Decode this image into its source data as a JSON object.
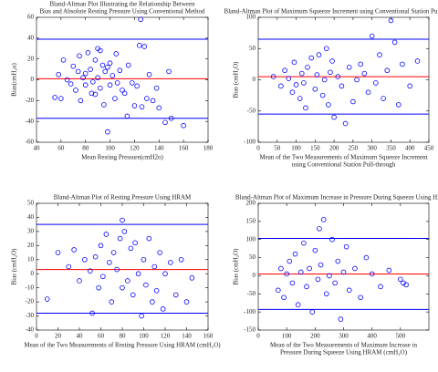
{
  "chart_data": [
    {
      "type": "scatter",
      "title": [
        "Bland-Altman Plot Illustrating the Relationship Between",
        "Bias and Absolute Resting Pressure Using Conventional Method"
      ],
      "xlabel": [
        "Mean Resting Pressure(cmH2o)"
      ],
      "ylabel": "Bias(cmH₂o)",
      "xlim": [
        40,
        180
      ],
      "xticks": [
        40,
        60,
        80,
        100,
        120,
        140,
        160,
        180
      ],
      "ylim": [
        -60,
        60
      ],
      "yticks": [
        -60,
        -40,
        -20,
        0,
        20,
        40,
        60
      ],
      "color": "#0000ff",
      "hlines": [
        39,
        1,
        -37
      ],
      "hline_colors": [
        "#0000ff",
        "#ff0000",
        "#0000ff"
      ],
      "x": [
        55,
        58,
        60,
        62,
        65,
        68,
        70,
        72,
        74,
        75,
        76,
        78,
        80,
        80,
        82,
        84,
        85,
        86,
        88,
        88,
        90,
        90,
        92,
        92,
        94,
        95,
        96,
        98,
        98,
        100,
        100,
        102,
        104,
        105,
        106,
        108,
        110,
        112,
        114,
        115,
        118,
        120,
        122,
        124,
        125,
        126,
        128,
        130,
        132,
        135,
        138,
        140,
        145,
        148,
        150,
        160
      ],
      "values": [
        -17,
        5,
        -18,
        19,
        0,
        -4,
        13,
        -10,
        8,
        23,
        -20,
        2,
        -5,
        6,
        26,
        10,
        -13,
        -2,
        -14,
        19,
        30,
        2,
        -8,
        28,
        14,
        -24,
        8,
        -50,
        12,
        -5,
        16,
        4,
        -18,
        25,
        -3,
        9,
        -10,
        -13,
        -35,
        14,
        -3,
        -25,
        -6,
        33,
        58,
        -26,
        32,
        -18,
        5,
        -20,
        -8,
        -27,
        -41,
        8,
        -37,
        -44
      ]
    },
    {
      "type": "scatter",
      "title": [
        "Bland-Altman Plot of Maximum Squeeze Increment using Conventional Station Pull-through"
      ],
      "xlabel": [
        "Mean of the Two Measurements of Maximum Squeeze Increment",
        "using Conventional Station Pull-through"
      ],
      "ylabel": "Bias (cmH₂O)",
      "xlim": [
        0,
        450
      ],
      "xticks": [
        0,
        50,
        100,
        150,
        200,
        250,
        300,
        350,
        400,
        450
      ],
      "ylim": [
        -100,
        100
      ],
      "yticks": [
        -100,
        -50,
        0,
        50,
        100
      ],
      "color": "#0000ff",
      "hlines": [
        65,
        5,
        -55
      ],
      "hline_colors": [
        "#0000ff",
        "#ff0000",
        "#0000ff"
      ],
      "x": [
        40,
        60,
        70,
        80,
        90,
        95,
        100,
        110,
        115,
        120,
        125,
        130,
        140,
        150,
        155,
        160,
        170,
        175,
        180,
        185,
        190,
        195,
        200,
        210,
        220,
        230,
        240,
        250,
        260,
        270,
        280,
        290,
        300,
        310,
        320,
        330,
        340,
        350,
        360,
        370,
        380,
        400,
        420
      ],
      "values": [
        5,
        -10,
        15,
        2,
        -20,
        28,
        -8,
        -30,
        10,
        -5,
        -45,
        20,
        35,
        -15,
        8,
        40,
        -25,
        0,
        50,
        -40,
        12,
        30,
        -60,
        5,
        -10,
        -70,
        20,
        -35,
        0,
        25,
        10,
        -20,
        70,
        -5,
        40,
        -30,
        15,
        95,
        60,
        -40,
        25,
        -10,
        30
      ]
    },
    {
      "type": "scatter",
      "title": [
        "Bland-Altman Plot of Resting Pressure Using HRAM"
      ],
      "xlabel": [
        "Mean of the Two Measurements of Resting Pressure Using HRAM (cmH₂O)"
      ],
      "ylabel": "Bias (cmH₂O)",
      "xlim": [
        0,
        160
      ],
      "xticks": [
        0,
        20,
        40,
        60,
        80,
        100,
        120,
        140,
        160
      ],
      "ylim": [
        -40,
        50
      ],
      "yticks": [
        -40,
        -30,
        -20,
        -10,
        0,
        10,
        20,
        30,
        40,
        50
      ],
      "color": "#0000ff",
      "hlines": [
        35,
        3,
        -28
      ],
      "hline_colors": [
        "#0000ff",
        "#ff0000",
        "#0000ff"
      ],
      "x": [
        10,
        20,
        30,
        35,
        40,
        45,
        50,
        52,
        55,
        58,
        60,
        62,
        65,
        68,
        70,
        72,
        75,
        78,
        80,
        80,
        82,
        85,
        88,
        90,
        92,
        95,
        98,
        100,
        102,
        105,
        108,
        110,
        112,
        115,
        118,
        120,
        125,
        130,
        135,
        140,
        145
      ],
      "values": [
        -18,
        15,
        5,
        17,
        -5,
        10,
        2,
        -28,
        12,
        -10,
        20,
        -2,
        28,
        8,
        -20,
        15,
        3,
        25,
        38,
        -10,
        30,
        -5,
        18,
        -15,
        22,
        0,
        -30,
        10,
        -8,
        25,
        -20,
        5,
        -12,
        15,
        -25,
        0,
        8,
        -15,
        10,
        -20,
        -3
      ]
    },
    {
      "type": "scatter",
      "title": [
        "Bland-Altman Plot of Maximum Increase in Pressure During Squeeze Using HRAM"
      ],
      "xlabel": [
        "Mean of the Two Measurements of Maximum Increase in",
        "Pressure During Squeeze Using HRAM (cmH₂O)"
      ],
      "ylabel": "Bias (cmH₂O)",
      "xlim": [
        0,
        600
      ],
      "xticks": [
        0,
        100,
        200,
        300,
        400,
        500
      ],
      "ylim": [
        -150,
        200
      ],
      "yticks": [
        -150,
        -100,
        -50,
        0,
        50,
        100,
        150,
        200
      ],
      "color": "#0000ff",
      "hlines": [
        103,
        5,
        -93
      ],
      "hline_colors": [
        "#0000ff",
        "#ff0000",
        "#0000ff"
      ],
      "x": [
        70,
        80,
        90,
        100,
        110,
        120,
        130,
        140,
        150,
        160,
        170,
        180,
        190,
        200,
        210,
        215,
        220,
        230,
        240,
        250,
        260,
        270,
        280,
        290,
        300,
        310,
        320,
        340,
        360,
        380,
        400,
        430,
        460,
        500,
        510,
        520
      ],
      "values": [
        -40,
        20,
        -60,
        5,
        40,
        -20,
        60,
        -80,
        10,
        90,
        -30,
        20,
        -100,
        70,
        -10,
        130,
        30,
        155,
        -50,
        0,
        100,
        -20,
        40,
        -120,
        10,
        80,
        -40,
        20,
        -60,
        50,
        5,
        -30,
        15,
        -10,
        -20,
        -25
      ]
    }
  ]
}
